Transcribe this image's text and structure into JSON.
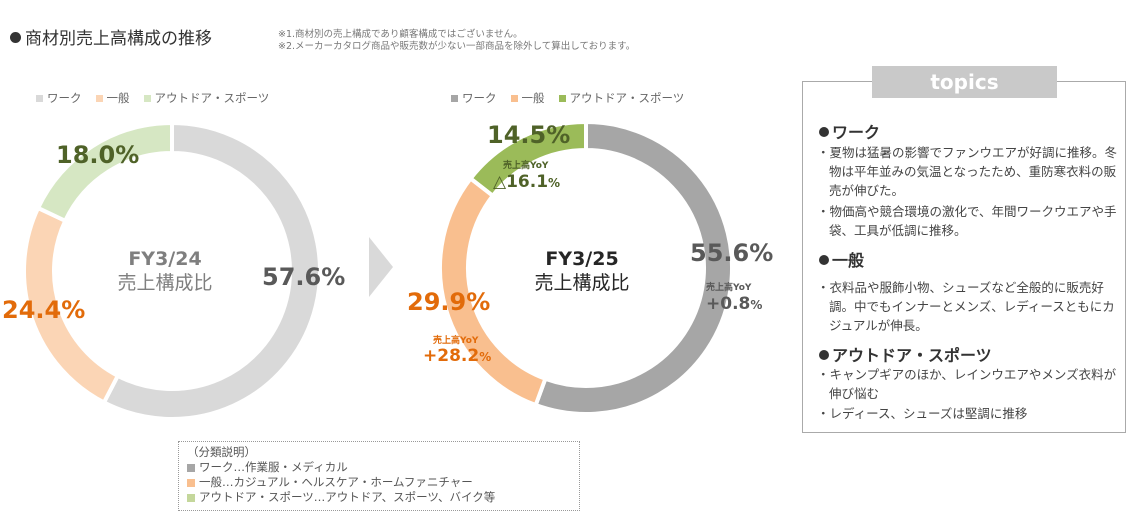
{
  "header": {
    "title": "商材別売上高構成の推移",
    "note1": "※1.商材別の売上構成であり顧客構成ではございません。",
    "note2": "※2.メーカーカタログ商品や販売数が少ない一部商品を除外して算出しております。"
  },
  "colors": {
    "fy24": {
      "work": "#d9d9d9",
      "general": "#fbd5b5",
      "outdoor": "#d6e7c3"
    },
    "fy25": {
      "work": "#a6a6a6",
      "general": "#f9bf8f",
      "outdoor": "#9bbb59"
    },
    "text_gray": "#595959",
    "text_orange": "#e26b0a",
    "text_olive": "#4f6228"
  },
  "chart_data": [
    {
      "type": "pie",
      "donut": true,
      "center_label_1": "FY3/24",
      "center_label_2": "売上構成比",
      "legend": [
        "ワーク",
        "一般",
        "アウトドア・スポーツ"
      ],
      "categories": [
        "ワーク",
        "一般",
        "アウトドア・スポーツ"
      ],
      "values": [
        57.6,
        24.4,
        18.0
      ],
      "value_labels": [
        "57.6%",
        "24.4%",
        "18.0%"
      ]
    },
    {
      "type": "pie",
      "donut": true,
      "center_label_1": "FY3/25",
      "center_label_2": "売上構成比",
      "legend": [
        "ワーク",
        "一般",
        "アウトドア・スポーツ"
      ],
      "categories": [
        "ワーク",
        "一般",
        "アウトドア・スポーツ"
      ],
      "values": [
        55.6,
        29.9,
        14.5
      ],
      "value_labels": [
        "55.6%",
        "29.9%",
        "14.5%"
      ],
      "yoy_label": "売上高YoY",
      "yoy": [
        {
          "sign": "+",
          "value": "0.8",
          "unit": "%"
        },
        {
          "sign": "+",
          "value": "28.2",
          "unit": "%"
        },
        {
          "sign": "△",
          "value": "16.1",
          "unit": "%"
        }
      ]
    }
  ],
  "classification": {
    "heading": "（分類説明）",
    "rows": [
      "ワーク…作業服・メディカル",
      "一般…カジュアル・ヘルスケア・ホームファニチャー",
      "アウトドア・スポーツ…アウトドア、スポーツ、バイク等"
    ]
  },
  "topics": {
    "heading": "topics",
    "sections": [
      {
        "title": "ワーク",
        "items": [
          "・夏物は猛暑の影響でファンウエアが好調に推移。冬物は平年並みの気温となったため、重防寒衣料の販売が伸びた。",
          "・物価高や競合環境の激化で、年間ワークウエアや手袋、工具が低調に推移。"
        ]
      },
      {
        "title": "一般",
        "items": [
          "・衣料品や服飾小物、シューズなど全般的に販売好調。中でもインナーとメンズ、レディースともにカジュアルが伸長。"
        ]
      },
      {
        "title": "アウトドア・スポーツ",
        "items": [
          "・キャンプギアのほか、レインウエアやメンズ衣料が伸び悩む",
          "・レディース、シューズは堅調に推移"
        ]
      }
    ]
  }
}
